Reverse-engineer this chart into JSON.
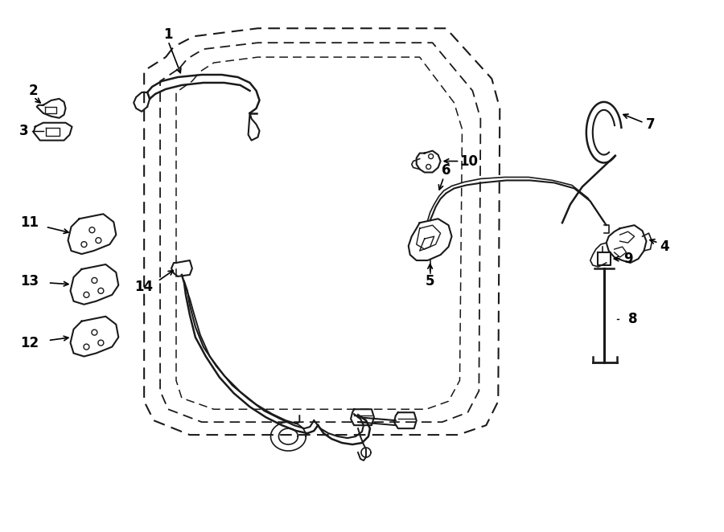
{
  "background_color": "#ffffff",
  "line_color": "#1a1a1a",
  "dashed_color": "#1a1a1a",
  "label_color": "#000000",
  "fig_width": 9.0,
  "fig_height": 6.62,
  "dpi": 100,
  "door_outer": {
    "x": [
      2.05,
      2.15,
      2.4,
      3.2,
      5.55,
      6.12,
      6.22,
      6.2,
      6.05,
      5.7,
      2.35,
      1.9,
      1.78,
      1.78,
      2.05
    ],
    "y": [
      5.92,
      6.05,
      6.18,
      6.28,
      6.28,
      5.65,
      5.28,
      1.62,
      1.32,
      1.2,
      1.2,
      1.38,
      1.62,
      5.75,
      5.92
    ]
  },
  "door_inner1": {
    "x": [
      2.22,
      2.32,
      2.52,
      3.2,
      5.38,
      5.88,
      5.98,
      5.96,
      5.82,
      5.5,
      2.5,
      2.08,
      1.98,
      1.98,
      2.22
    ],
    "y": [
      5.78,
      5.9,
      6.02,
      6.1,
      6.1,
      5.5,
      5.15,
      1.75,
      1.48,
      1.36,
      1.36,
      1.52,
      1.75,
      5.62,
      5.78
    ]
  },
  "door_inner2": {
    "x": [
      2.38,
      2.48,
      2.65,
      3.2,
      5.22,
      5.65,
      5.75,
      5.72,
      5.58,
      5.3,
      2.65,
      2.25,
      2.18,
      2.18,
      2.38
    ],
    "y": [
      5.62,
      5.74,
      5.85,
      5.92,
      5.92,
      5.35,
      5.02,
      1.88,
      1.62,
      1.52,
      1.52,
      1.66,
      1.88,
      5.48,
      5.62
    ]
  }
}
